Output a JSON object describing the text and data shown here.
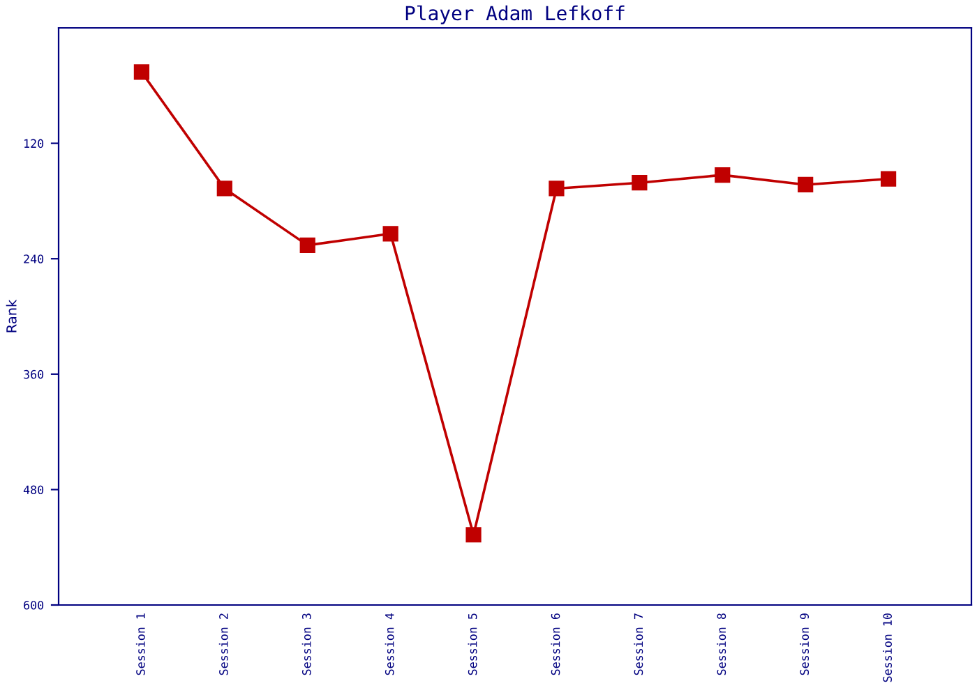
{
  "chart_data": {
    "type": "line",
    "title": "Player Adam Lefkoff",
    "ylabel": "Rank",
    "categories": [
      "Session 1",
      "Session 2",
      "Session 3",
      "Session 4",
      "Session 5",
      "Session 6",
      "Session 7",
      "Session 8",
      "Session 9",
      "Session 10"
    ],
    "series": [
      {
        "color": "#c00000",
        "values": [
          46,
          167,
          226,
          214,
          527,
          167,
          161,
          153,
          163,
          157
        ]
      }
    ],
    "ylim": [
      600,
      0
    ],
    "yticks": [
      120,
      240,
      360,
      480,
      600
    ],
    "marker": "square",
    "line_style": "solid",
    "grid": false,
    "legend": false
  }
}
